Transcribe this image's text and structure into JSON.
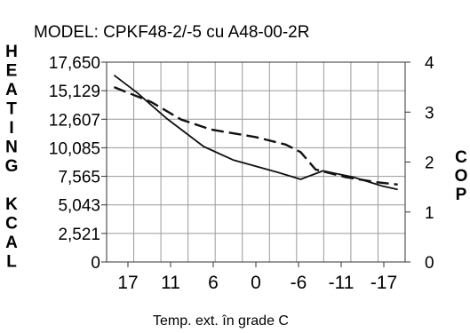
{
  "chart_data": {
    "type": "line",
    "title": "MODEL: CPKF48-2/-5 cu A48-00-2R",
    "xlabel": "Temp. ext. în grade C",
    "ylabel_left": "HEATING KCAL",
    "ylabel_right": "COP",
    "x_tick_labels": [
      "17",
      "11",
      "6",
      "0",
      "-6",
      "-11",
      "-17"
    ],
    "y_left_ticks": [
      "17,650",
      "15,129",
      "12,607",
      "10,085",
      "7,565",
      "5,043",
      "2,521",
      "0"
    ],
    "y_right_ticks": [
      "4",
      "3",
      "2",
      "1",
      "0"
    ],
    "ylim_left": [
      0,
      17650
    ],
    "ylim_right": [
      0,
      4
    ],
    "xlim": [
      20,
      -20
    ],
    "grid": true,
    "series": [
      {
        "axis": "left",
        "style": "solid",
        "x": [
          19,
          16,
          12,
          7,
          3,
          -3,
          -6,
          -9,
          -13,
          -17,
          -19
        ],
        "y": [
          16500,
          15000,
          12700,
          10200,
          9000,
          7900,
          7300,
          8050,
          7500,
          6700,
          6400
        ]
      },
      {
        "axis": "right",
        "style": "dashed",
        "x": [
          19,
          14,
          10,
          6,
          0,
          -4,
          -6,
          -8,
          -12,
          -16,
          -19
        ],
        "y": [
          3.5,
          3.2,
          2.85,
          2.65,
          2.5,
          2.35,
          2.2,
          1.85,
          1.7,
          1.6,
          1.55
        ]
      }
    ]
  }
}
